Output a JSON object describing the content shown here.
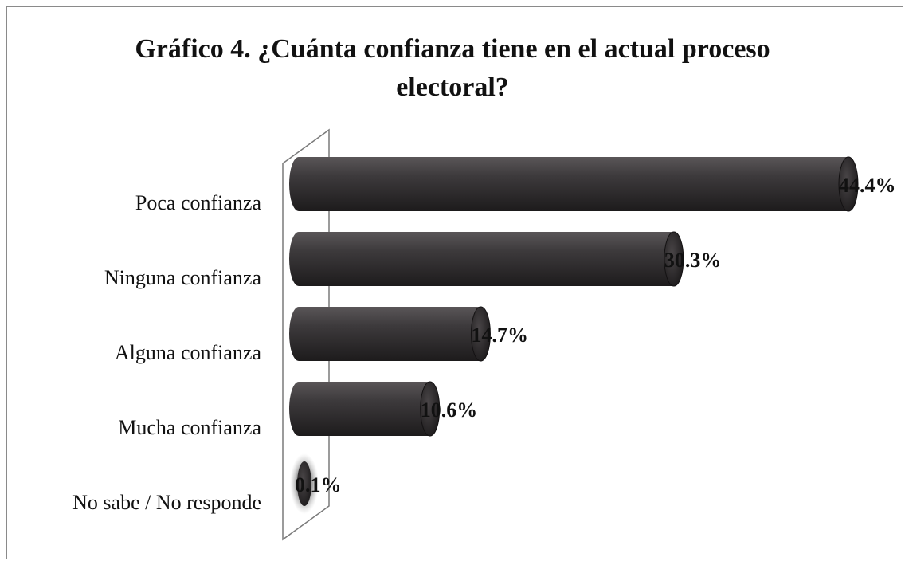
{
  "chart_data": {
    "type": "bar",
    "orientation": "horizontal",
    "title": "Gráfico 4. ¿Cuánta confianza tiene en el actual proceso electoral?",
    "categories": [
      "Poca confianza",
      "Ninguna confianza",
      "Alguna confianza",
      "Mucha confianza",
      "No sabe / No responde"
    ],
    "values": [
      44.4,
      30.3,
      14.7,
      10.6,
      0.1
    ],
    "value_labels": [
      "44.4%",
      "30.3%",
      "14.7%",
      "10.6%",
      "0.1%"
    ],
    "xlim": [
      0,
      44.4
    ],
    "grid": false,
    "legend": "none",
    "colors": {
      "bar": "#3a3739",
      "bar_dark": "#1e1c1d",
      "bar_light": "#6a6668"
    }
  }
}
